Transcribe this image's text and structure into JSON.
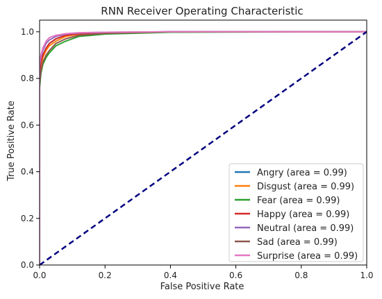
{
  "chart_data": {
    "type": "line",
    "title": "RNN Receiver Operating Characteristic",
    "xlabel": "False Positive Rate",
    "ylabel": "True Positive Rate",
    "xlim": [
      0,
      1
    ],
    "ylim": [
      0,
      1.05
    ],
    "xticks": [
      "0.0",
      "0.2",
      "0.4",
      "0.6",
      "0.8",
      "1.0"
    ],
    "yticks": [
      "0.0",
      "0.2",
      "0.4",
      "0.6",
      "0.8",
      "1.0"
    ],
    "grid": false,
    "legend_position": "lower-right",
    "series": [
      {
        "name": "Angry (area = 0.99)",
        "color": "#1f77b4",
        "x": [
          0,
          0,
          0.004,
          0.01,
          0.02,
          0.03,
          0.05,
          0.08,
          0.12,
          0.2,
          0.4,
          1.0
        ],
        "y": [
          0,
          0.82,
          0.86,
          0.9,
          0.93,
          0.95,
          0.97,
          0.985,
          0.99,
          0.995,
          1.0,
          1.0
        ]
      },
      {
        "name": "Disgust (area = 0.99)",
        "color": "#ff7f0e",
        "x": [
          0,
          0,
          0.004,
          0.01,
          0.02,
          0.03,
          0.05,
          0.08,
          0.12,
          0.2,
          0.4,
          1.0
        ],
        "y": [
          0,
          0.8,
          0.85,
          0.89,
          0.92,
          0.94,
          0.96,
          0.98,
          0.99,
          0.995,
          1.0,
          1.0
        ]
      },
      {
        "name": "Fear (area = 0.99)",
        "color": "#2ca02c",
        "x": [
          0,
          0,
          0.004,
          0.01,
          0.02,
          0.03,
          0.05,
          0.08,
          0.12,
          0.2,
          0.4,
          1.0
        ],
        "y": [
          0,
          0.76,
          0.82,
          0.86,
          0.89,
          0.91,
          0.94,
          0.96,
          0.98,
          0.99,
          0.998,
          1.0
        ]
      },
      {
        "name": "Happy (area = 0.99)",
        "color": "#d62728",
        "x": [
          0,
          0,
          0.004,
          0.01,
          0.02,
          0.03,
          0.05,
          0.08,
          0.12,
          0.2,
          0.4,
          1.0
        ],
        "y": [
          0,
          0.83,
          0.87,
          0.9,
          0.93,
          0.95,
          0.97,
          0.985,
          0.992,
          0.996,
          1.0,
          1.0
        ]
      },
      {
        "name": "Neutral (area = 0.99)",
        "color": "#9467bd",
        "x": [
          0,
          0,
          0.004,
          0.01,
          0.02,
          0.03,
          0.05,
          0.08,
          0.12,
          0.2,
          0.4,
          1.0
        ],
        "y": [
          0,
          0.85,
          0.89,
          0.92,
          0.95,
          0.965,
          0.98,
          0.99,
          0.995,
          0.998,
          1.0,
          1.0
        ]
      },
      {
        "name": "Sad (area = 0.99)",
        "color": "#8c564b",
        "x": [
          0,
          0,
          0.004,
          0.01,
          0.02,
          0.03,
          0.05,
          0.08,
          0.12,
          0.2,
          0.4,
          1.0
        ],
        "y": [
          0,
          0.78,
          0.83,
          0.87,
          0.9,
          0.92,
          0.95,
          0.97,
          0.985,
          0.993,
          1.0,
          1.0
        ]
      },
      {
        "name": "Surprise (area = 0.99)",
        "color": "#e377c2",
        "x": [
          0,
          0,
          0.004,
          0.01,
          0.02,
          0.03,
          0.05,
          0.08,
          0.12,
          0.2,
          0.4,
          1.0
        ],
        "y": [
          0,
          0.86,
          0.9,
          0.93,
          0.96,
          0.975,
          0.985,
          0.992,
          0.996,
          0.998,
          1.0,
          1.0
        ]
      }
    ],
    "reference_line": {
      "x": [
        0,
        1
      ],
      "y": [
        0,
        1
      ],
      "color": "#000080",
      "style": "dashed"
    }
  }
}
